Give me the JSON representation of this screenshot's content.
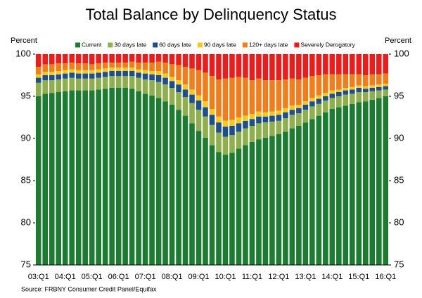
{
  "chart_data": {
    "type": "stacked_bar",
    "title": "Total Balance by Delinquency Status",
    "ylabel": "Percent",
    "y2label": "Percent",
    "source": "Source: FRBNY Consumer Credit Panel/Equifax",
    "categories": [
      "03:Q1",
      null,
      null,
      null,
      "04:Q1",
      null,
      null,
      null,
      "05:Q1",
      null,
      null,
      null,
      "06:Q1",
      null,
      null,
      null,
      "07:Q1",
      null,
      null,
      null,
      "08:Q1",
      null,
      null,
      null,
      "09:Q1",
      null,
      null,
      null,
      "10:Q1",
      null,
      null,
      null,
      "11:Q1",
      null,
      null,
      null,
      "12:Q1",
      null,
      null,
      null,
      "13:Q1",
      null,
      null,
      null,
      "14:Q1",
      null,
      null,
      null,
      "15:Q1",
      null,
      null,
      null,
      "16:Q1"
    ],
    "series": [
      {
        "name": "Current",
        "color": "#1e7b32",
        "values": [
          95.0,
          95.3,
          95.4,
          95.5,
          95.6,
          95.7,
          95.7,
          95.7,
          95.7,
          95.8,
          95.9,
          96.0,
          96.0,
          96.0,
          95.9,
          95.6,
          95.3,
          95.1,
          94.8,
          94.4,
          94.0,
          93.4,
          92.7,
          91.8,
          90.9,
          90.1,
          89.2,
          88.4,
          88.1,
          88.3,
          88.8,
          89.2,
          89.6,
          89.9,
          90.1,
          90.3,
          90.5,
          90.8,
          91.2,
          91.5,
          91.9,
          92.3,
          92.7,
          93.1,
          93.5,
          93.7,
          93.9,
          94.1,
          94.3,
          94.4,
          94.6,
          94.8,
          95.0
        ]
      },
      {
        "name": "30 days late",
        "color": "#8fae4d",
        "values": [
          1.6,
          1.6,
          1.5,
          1.5,
          1.5,
          1.5,
          1.4,
          1.4,
          1.4,
          1.4,
          1.4,
          1.4,
          1.4,
          1.4,
          1.5,
          1.6,
          1.7,
          1.8,
          1.9,
          2.0,
          2.0,
          2.1,
          2.2,
          2.4,
          2.5,
          2.5,
          2.4,
          2.3,
          2.1,
          2.1,
          2.0,
          2.0,
          1.9,
          1.9,
          1.8,
          1.7,
          1.6,
          1.6,
          1.6,
          1.5,
          1.5,
          1.5,
          1.4,
          1.4,
          1.3,
          1.3,
          1.3,
          1.2,
          1.2,
          1.1,
          1.0,
          0.9,
          0.8
        ]
      },
      {
        "name": "60 days late",
        "color": "#1f4e8c",
        "values": [
          0.6,
          0.6,
          0.6,
          0.6,
          0.6,
          0.6,
          0.6,
          0.6,
          0.6,
          0.6,
          0.6,
          0.6,
          0.6,
          0.6,
          0.6,
          0.6,
          0.7,
          0.7,
          0.8,
          0.8,
          0.8,
          0.9,
          0.9,
          1.0,
          1.1,
          1.1,
          1.2,
          1.2,
          1.2,
          1.1,
          1.0,
          0.9,
          0.8,
          0.8,
          0.7,
          0.7,
          0.7,
          0.7,
          0.6,
          0.6,
          0.6,
          0.6,
          0.6,
          0.5,
          0.5,
          0.5,
          0.5,
          0.5,
          0.5,
          0.4,
          0.4,
          0.4,
          0.4
        ]
      },
      {
        "name": "90 days late",
        "color": "#f6c91e",
        "values": [
          0.4,
          0.4,
          0.4,
          0.4,
          0.4,
          0.4,
          0.4,
          0.4,
          0.4,
          0.4,
          0.4,
          0.4,
          0.4,
          0.4,
          0.4,
          0.4,
          0.4,
          0.4,
          0.5,
          0.5,
          0.5,
          0.5,
          0.6,
          0.6,
          0.6,
          0.7,
          0.7,
          0.7,
          0.7,
          0.7,
          0.7,
          0.6,
          0.6,
          0.6,
          0.5,
          0.5,
          0.5,
          0.5,
          0.5,
          0.4,
          0.4,
          0.4,
          0.4,
          0.4,
          0.4,
          0.3,
          0.3,
          0.3,
          0.3,
          0.3,
          0.3,
          0.3,
          0.3
        ]
      },
      {
        "name": "120+ days late",
        "color": "#f07d1b",
        "values": [
          0.9,
          0.9,
          0.9,
          0.9,
          0.8,
          0.8,
          0.8,
          0.8,
          0.7,
          0.7,
          0.7,
          0.6,
          0.6,
          0.6,
          0.7,
          0.8,
          0.9,
          1.0,
          1.1,
          1.3,
          1.5,
          1.8,
          2.1,
          2.5,
          3.0,
          3.4,
          3.9,
          4.4,
          5.0,
          5.0,
          4.8,
          4.5,
          4.0,
          3.9,
          3.8,
          3.7,
          3.6,
          3.4,
          3.2,
          3.0,
          2.8,
          2.6,
          2.4,
          2.2,
          1.9,
          1.8,
          1.6,
          1.5,
          1.3,
          1.3,
          1.3,
          1.2,
          1.2
        ]
      },
      {
        "name": "Severely Derogatory",
        "color": "#e81e1e",
        "values": [
          1.5,
          1.2,
          1.2,
          1.1,
          1.1,
          1.0,
          1.1,
          1.1,
          1.2,
          1.1,
          1.0,
          1.0,
          1.0,
          1.0,
          0.9,
          1.0,
          1.0,
          1.0,
          0.9,
          1.0,
          1.2,
          1.3,
          1.5,
          1.7,
          1.9,
          2.2,
          2.6,
          3.0,
          2.9,
          2.8,
          2.7,
          2.8,
          3.1,
          2.9,
          3.1,
          3.1,
          3.1,
          3.0,
          2.9,
          3.0,
          2.8,
          2.6,
          2.5,
          2.4,
          2.4,
          2.4,
          2.4,
          2.4,
          2.4,
          2.5,
          2.4,
          2.4,
          2.3
        ]
      }
    ],
    "ylim": [
      75,
      100
    ],
    "yticks": [
      75,
      80,
      85,
      90,
      95,
      100
    ],
    "y2lim": [
      75,
      100
    ],
    "y2ticks": [
      75,
      80,
      85,
      90,
      95,
      100
    ]
  }
}
